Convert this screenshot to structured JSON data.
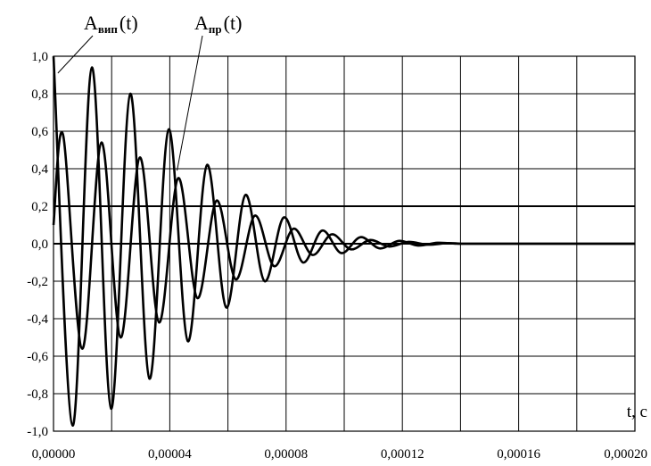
{
  "chart_data": {
    "type": "line",
    "title": "",
    "xlabel": "t, c",
    "ylabel": "",
    "xlim": [
      0,
      0.0002
    ],
    "ylim": [
      -1.0,
      1.0
    ],
    "grid": true,
    "legend": "none",
    "x_ticks": [
      "0,00000",
      "0,00004",
      "0,00008",
      "0,00012",
      "0,00016",
      "0,00020"
    ],
    "x_tick_values": [
      0,
      4e-05,
      8e-05,
      0.00012,
      0.00016,
      0.0002
    ],
    "x_minor_step": 2e-05,
    "y_ticks": [
      "1,0",
      "0,8",
      "0,6",
      "0,4",
      "0,2",
      "0,0",
      "-0,2",
      "-0,4",
      "-0,6",
      "-0,8",
      "-1,0"
    ],
    "y_tick_values": [
      1.0,
      0.8,
      0.6,
      0.4,
      0.2,
      0.0,
      -0.2,
      -0.4,
      -0.6,
      -0.8,
      -1.0
    ],
    "y_emphasized_gridlines": [
      0.2,
      0.0
    ],
    "series": [
      {
        "name": "A",
        "name_sub": "вип",
        "name_suffix": "(t)",
        "description": "damped cosine",
        "x": [
          0,
          6.6e-06,
          1.32e-05,
          1.98e-05,
          2.64e-05,
          3.3e-05,
          3.96e-05,
          4.62e-05,
          5.28e-05,
          5.94e-05,
          6.6e-05,
          7.26e-05,
          7.92e-05,
          8.58e-05,
          9.24e-05,
          9.9e-05,
          0.0001056,
          0.0001122,
          0.0001188,
          0.0001254,
          0.000132,
          0.0001386
        ],
        "y": [
          1.0,
          -0.97,
          0.94,
          -0.88,
          0.8,
          -0.72,
          0.61,
          -0.52,
          0.42,
          -0.34,
          0.26,
          -0.2,
          0.14,
          -0.1,
          0.07,
          -0.05,
          0.035,
          -0.025,
          0.015,
          -0.01,
          0.005,
          0.0
        ]
      },
      {
        "name": "A",
        "name_sub": "пр",
        "name_suffix": "(t)",
        "description": "damped sine",
        "x": [
          0,
          3.3e-06,
          9.9e-06,
          1.65e-05,
          2.31e-05,
          2.97e-05,
          3.63e-05,
          4.29e-05,
          4.95e-05,
          5.61e-05,
          6.27e-05,
          6.93e-05,
          7.59e-05,
          8.25e-05,
          8.91e-05,
          9.57e-05,
          0.0001023,
          0.0001089,
          0.0001155,
          0.0001221,
          0.0001287,
          0.0001353,
          0.00014
        ],
        "y": [
          0.1,
          0.58,
          -0.56,
          0.54,
          -0.5,
          0.46,
          -0.42,
          0.35,
          -0.29,
          0.23,
          -0.19,
          0.15,
          -0.12,
          0.08,
          -0.06,
          0.05,
          -0.03,
          0.02,
          -0.015,
          0.01,
          -0.005,
          0.003,
          0.0
        ]
      }
    ]
  }
}
